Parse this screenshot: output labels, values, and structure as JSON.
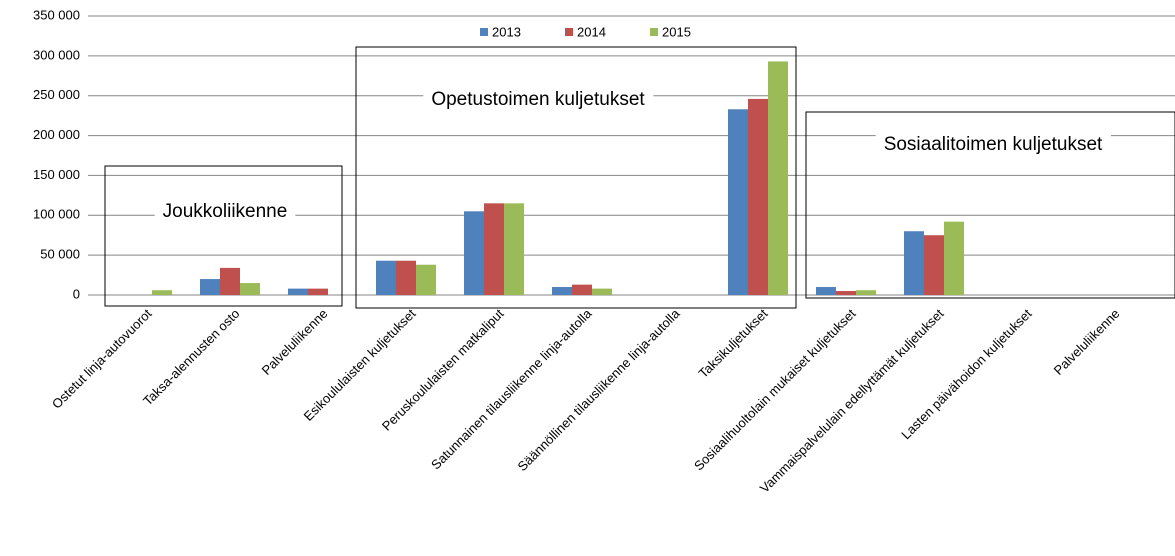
{
  "chart_data": {
    "type": "bar",
    "categories": [
      "Ostetut linja-autovuorot",
      "Taksa-alennusten osto",
      "Palveluliikenne",
      "Esikoululaisten kuljetukset",
      "Peruskoululaisten matkaliput",
      "Satunnainen tilausliikenne linja-autolla",
      "Säännöllinen tilausliikenne linja-autolla",
      "Taksikuljetukset",
      "Sosiaalihuoltolain mukaiset kuljetukset",
      "Vammaispalvelulain edellyttämät kuljetukset",
      "Lasten päivähoidon kuljetukset",
      "Palveluliikenne"
    ],
    "series": [
      {
        "name": "2013",
        "color": "#4f81bd",
        "values": [
          0,
          20000,
          8000,
          43000,
          105000,
          10000,
          0,
          233000,
          10000,
          80000,
          0,
          0
        ]
      },
      {
        "name": "2014",
        "color": "#c0504d",
        "values": [
          0,
          34000,
          8000,
          43000,
          115000,
          13000,
          0,
          246000,
          5000,
          75000,
          0,
          0
        ]
      },
      {
        "name": "2015",
        "color": "#9bbb59",
        "values": [
          6000,
          15000,
          0,
          38000,
          115000,
          8000,
          0,
          293000,
          6000,
          92000,
          0,
          0
        ]
      }
    ],
    "ylim": [
      0,
      350000
    ],
    "yticks": [
      0,
      {
        "value": 50000,
        "label": "50 000"
      },
      {
        "value": 100000,
        "label": "100 000"
      },
      {
        "value": 150000,
        "label": "150 000"
      },
      {
        "value": 200000,
        "label": "200 000"
      },
      {
        "value": 250000,
        "label": "250 000"
      },
      {
        "value": 300000,
        "label": "300 000"
      },
      {
        "value": 350000,
        "label": "350 000"
      }
    ],
    "grid": true,
    "legend": "top",
    "annotations": [
      "Joukkoliikenne",
      "Opetustoimen kuljetukset",
      "Sosiaalitoimen kuljetukset"
    ]
  }
}
